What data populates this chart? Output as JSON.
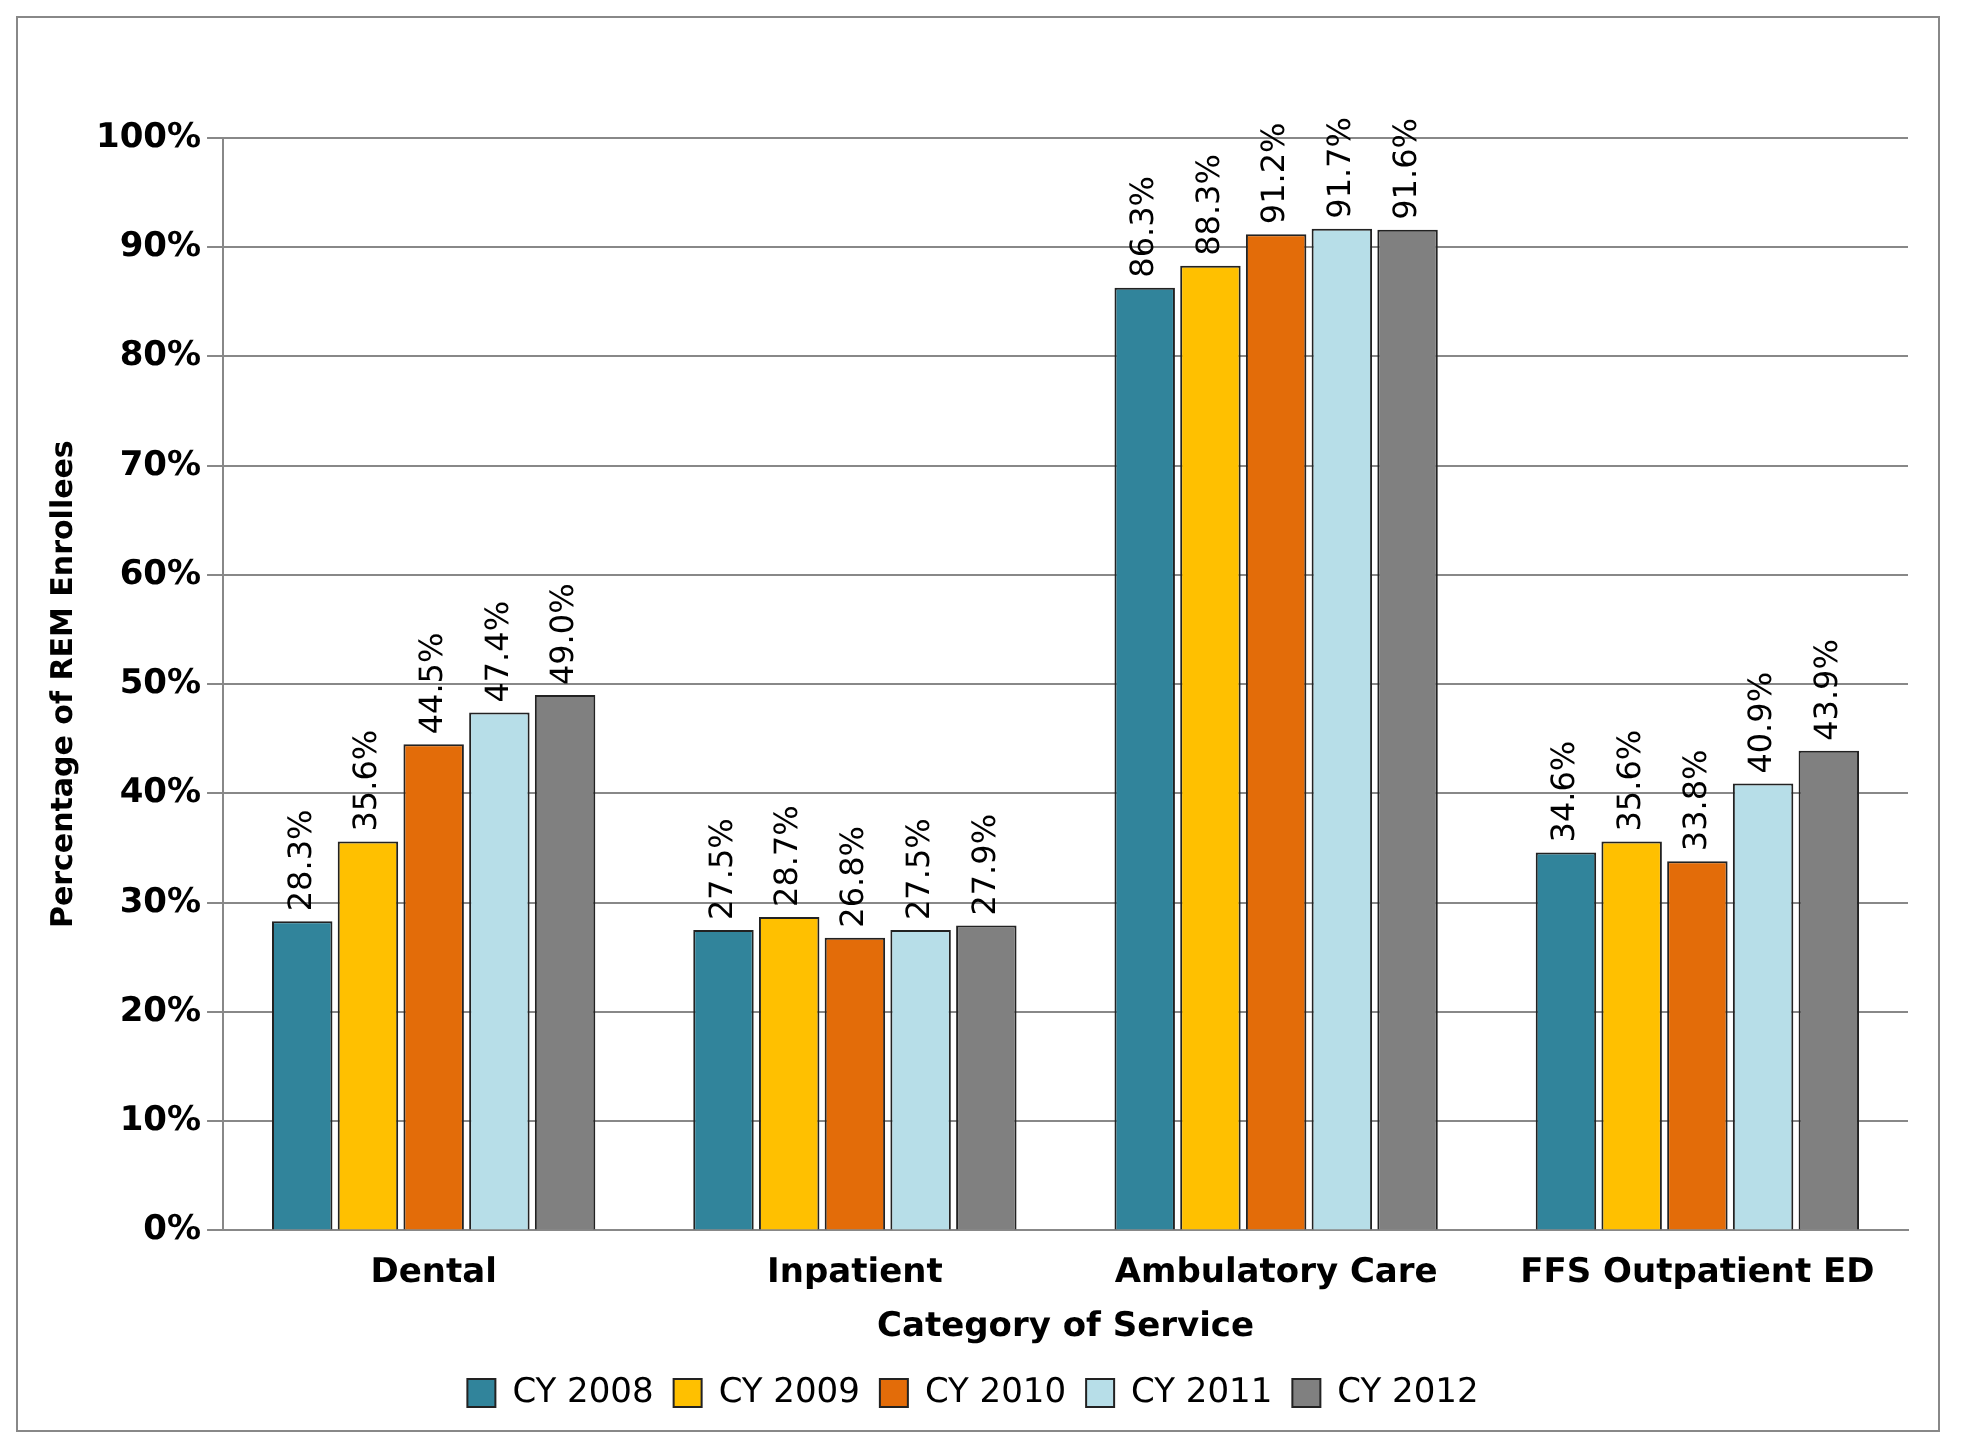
{
  "chart_data": {
    "type": "bar",
    "xlabel": "Category of Service",
    "ylabel": "Percentage of REM Enrollees",
    "categories": [
      "Dental",
      "Inpatient",
      "Ambulatory Care",
      "FFS Outpatient ED"
    ],
    "series": [
      {
        "name": "CY 2008",
        "color": "#31849b",
        "values": [
          28.3,
          27.5,
          86.3,
          34.6
        ],
        "value_labels": [
          "28.3%",
          "27.5%",
          "86.3%",
          "34.6%"
        ]
      },
      {
        "name": "CY 2009",
        "color": "#ffc000",
        "values": [
          35.6,
          28.7,
          88.3,
          35.6
        ],
        "value_labels": [
          "35.6%",
          "28.7%",
          "88.3%",
          "35.6%"
        ]
      },
      {
        "name": "CY 2010",
        "color": "#e36c09",
        "values": [
          44.5,
          26.8,
          91.2,
          33.8
        ],
        "value_labels": [
          "44.5%",
          "26.8%",
          "91.2%",
          "33.8%"
        ]
      },
      {
        "name": "CY 2011",
        "color": "#b7dee8",
        "values": [
          47.4,
          27.5,
          91.7,
          40.9
        ],
        "value_labels": [
          "47.4%",
          "27.5%",
          "91.7%",
          "40.9%"
        ]
      },
      {
        "name": "CY 2012",
        "color": "#808080",
        "values": [
          49.0,
          27.9,
          91.6,
          43.9
        ],
        "value_labels": [
          "49.0%",
          "27.9%",
          "91.6%",
          "43.9%"
        ]
      }
    ],
    "ylim": [
      0,
      100
    ],
    "yticks": [
      {
        "value": 0,
        "label": "0%"
      },
      {
        "value": 10,
        "label": "10%"
      },
      {
        "value": 20,
        "label": "20%"
      },
      {
        "value": 30,
        "label": "30%"
      },
      {
        "value": 40,
        "label": "40%"
      },
      {
        "value": 50,
        "label": "50%"
      },
      {
        "value": 60,
        "label": "60%"
      },
      {
        "value": 70,
        "label": "70%"
      },
      {
        "value": 80,
        "label": "80%"
      },
      {
        "value": 90,
        "label": "90%"
      },
      {
        "value": 100,
        "label": "100%"
      }
    ],
    "grid": "y",
    "legend": "bottom"
  }
}
